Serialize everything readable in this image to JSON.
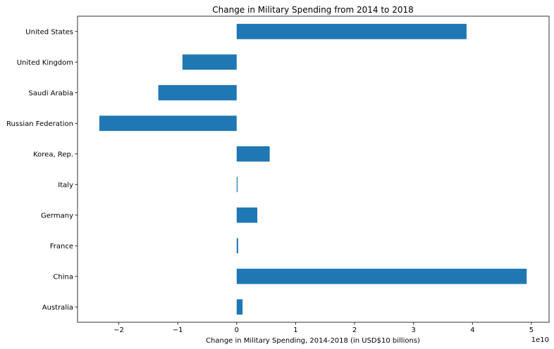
{
  "chart_data": {
    "type": "bar",
    "orientation": "horizontal",
    "title": "Change in Military Spending from 2014 to 2018",
    "xlabel": "Change in Military Spending, 2014-2018 (in USD$10 billions)",
    "ylabel": "",
    "offset_text": "1e10",
    "categories": [
      "Australia",
      "China",
      "France",
      "Germany",
      "Italy",
      "Korea, Rep.",
      "Russian Federation",
      "Saudi Arabia",
      "United Kingdom",
      "United States"
    ],
    "values": [
      1000000000.0,
      49200000000.0,
      250000000.0,
      3500000000.0,
      150000000.0,
      5600000000.0,
      -23300000000.0,
      -13300000000.0,
      -9200000000.0,
      39000000000.0
    ],
    "xlim": [
      -27000000000.0,
      53000000000.0
    ],
    "xticks": [
      -20000000000.0,
      -10000000000.0,
      0,
      10000000000.0,
      20000000000.0,
      30000000000.0,
      40000000000.0,
      50000000000.0
    ],
    "xtick_labels": [
      "−2",
      "−1",
      "0",
      "1",
      "2",
      "3",
      "4",
      "5"
    ],
    "bar_color": "#1f77b4",
    "grid": false,
    "legend": "none"
  }
}
